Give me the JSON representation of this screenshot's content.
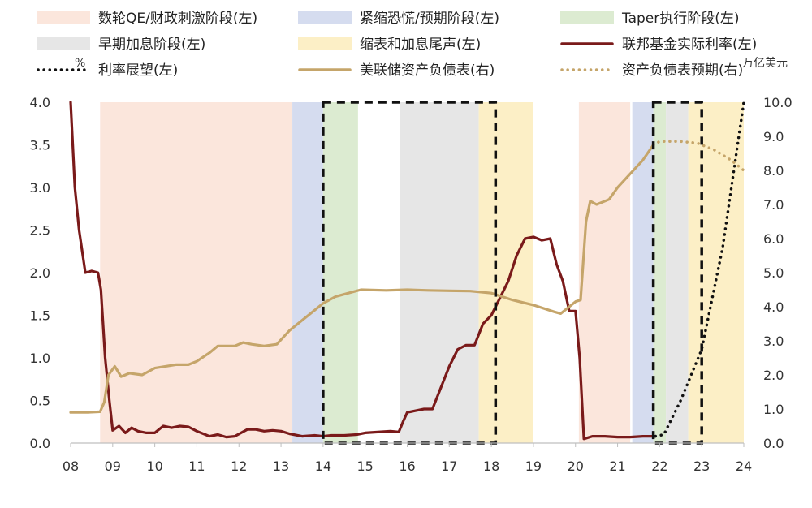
{
  "chart_data": {
    "type": "line",
    "title": "",
    "left_unit": "%",
    "right_unit": "万亿美元",
    "x_ticks": [
      "08",
      "09",
      "10",
      "11",
      "12",
      "13",
      "14",
      "15",
      "16",
      "17",
      "18",
      "19",
      "20",
      "21",
      "22",
      "23",
      "24"
    ],
    "xlim": [
      2008,
      2024
    ],
    "ylim_left": [
      0,
      4
    ],
    "ylim_right": [
      0,
      10
    ],
    "y_ticks_left": [
      "0.0",
      "0.5",
      "1.0",
      "1.5",
      "2.0",
      "2.5",
      "3.0",
      "3.5",
      "4.0"
    ],
    "y_ticks_right": [
      "0.0",
      "1.0",
      "2.0",
      "3.0",
      "4.0",
      "5.0",
      "6.0",
      "7.0",
      "8.0",
      "9.0",
      "10.0"
    ],
    "legend": [
      {
        "label": "数轮QE/财政刺激阶段(左)",
        "kind": "box",
        "color": "#fbe6dc"
      },
      {
        "label": "紧缩恐慌/预期阶段(左)",
        "kind": "box",
        "color": "#d5dcef"
      },
      {
        "label": "Taper执行阶段(左)",
        "kind": "box",
        "color": "#dcebd1"
      },
      {
        "label": "早期加息阶段(左)",
        "kind": "box",
        "color": "#e6e6e6"
      },
      {
        "label": "缩表和加息尾声(左)",
        "kind": "box",
        "color": "#fcefc6"
      },
      {
        "label": "联邦基金实际利率(左)",
        "kind": "line",
        "color": "#7a1a1a"
      },
      {
        "label": "利率展望(左)",
        "kind": "dotted",
        "color": "#111111"
      },
      {
        "label": "美联储资产负债表(右)",
        "kind": "line",
        "color": "#c5a56a"
      },
      {
        "label": "资产负债表预期(右)",
        "kind": "dotted",
        "color": "#c5a56a"
      }
    ],
    "phases": [
      {
        "name": "数轮QE/财政刺激阶段",
        "start": 2008.7,
        "end": 2013.27,
        "color": "#fbe6dc"
      },
      {
        "name": "紧缩恐慌/预期阶段",
        "start": 2013.27,
        "end": 2014.0,
        "color": "#d5dcef"
      },
      {
        "name": "Taper执行阶段",
        "start": 2014.0,
        "end": 2014.83,
        "color": "#dcebd1"
      },
      {
        "name": "早期加息阶段",
        "start": 2015.83,
        "end": 2017.7,
        "color": "#e6e6e6"
      },
      {
        "name": "缩表和加息尾声",
        "start": 2017.7,
        "end": 2019.0,
        "color": "#fcefc6"
      },
      {
        "name": "数轮QE/财政刺激阶段",
        "start": 2020.08,
        "end": 2021.3,
        "color": "#fbe6dc"
      },
      {
        "name": "紧缩恐慌/预期阶段",
        "start": 2021.35,
        "end": 2021.85,
        "color": "#d5dcef"
      },
      {
        "name": "Taper执行阶段",
        "start": 2021.85,
        "end": 2022.15,
        "color": "#dcebd1"
      },
      {
        "name": "早期加息阶段",
        "start": 2022.15,
        "end": 2022.68,
        "color": "#e6e6e6"
      },
      {
        "name": "缩表和加息尾声",
        "start": 2022.68,
        "end": 2024.0,
        "color": "#fcefc6"
      }
    ],
    "highlight_boxes": [
      {
        "start": 2014.0,
        "end": 2018.1
      },
      {
        "start": 2021.85,
        "end": 2023.0
      }
    ],
    "series": [
      {
        "name": "联邦基金实际利率(左)",
        "axis": "left",
        "style": "solid",
        "color": "#7a1a1a",
        "points": [
          [
            2008.0,
            4.0
          ],
          [
            2008.1,
            3.0
          ],
          [
            2008.2,
            2.5
          ],
          [
            2008.35,
            2.0
          ],
          [
            2008.5,
            2.02
          ],
          [
            2008.65,
            2.0
          ],
          [
            2008.72,
            1.8
          ],
          [
            2008.82,
            1.0
          ],
          [
            2008.92,
            0.5
          ],
          [
            2009.0,
            0.15
          ],
          [
            2009.15,
            0.2
          ],
          [
            2009.3,
            0.12
          ],
          [
            2009.45,
            0.18
          ],
          [
            2009.6,
            0.14
          ],
          [
            2009.8,
            0.12
          ],
          [
            2010.0,
            0.12
          ],
          [
            2010.2,
            0.2
          ],
          [
            2010.4,
            0.18
          ],
          [
            2010.6,
            0.2
          ],
          [
            2010.8,
            0.19
          ],
          [
            2011.0,
            0.14
          ],
          [
            2011.3,
            0.08
          ],
          [
            2011.5,
            0.1
          ],
          [
            2011.7,
            0.07
          ],
          [
            2011.9,
            0.08
          ],
          [
            2012.2,
            0.16
          ],
          [
            2012.4,
            0.16
          ],
          [
            2012.6,
            0.14
          ],
          [
            2012.8,
            0.15
          ],
          [
            2013.0,
            0.14
          ],
          [
            2013.2,
            0.11
          ],
          [
            2013.5,
            0.08
          ],
          [
            2013.8,
            0.09
          ],
          [
            2014.0,
            0.08
          ],
          [
            2014.2,
            0.09
          ],
          [
            2014.5,
            0.09
          ],
          [
            2014.8,
            0.1
          ],
          [
            2015.0,
            0.12
          ],
          [
            2015.3,
            0.13
          ],
          [
            2015.6,
            0.14
          ],
          [
            2015.8,
            0.13
          ],
          [
            2015.9,
            0.25
          ],
          [
            2016.0,
            0.36
          ],
          [
            2016.2,
            0.38
          ],
          [
            2016.4,
            0.4
          ],
          [
            2016.6,
            0.4
          ],
          [
            2016.8,
            0.65
          ],
          [
            2017.0,
            0.9
          ],
          [
            2017.2,
            1.1
          ],
          [
            2017.4,
            1.15
          ],
          [
            2017.6,
            1.15
          ],
          [
            2017.8,
            1.4
          ],
          [
            2018.0,
            1.5
          ],
          [
            2018.2,
            1.7
          ],
          [
            2018.4,
            1.9
          ],
          [
            2018.6,
            2.2
          ],
          [
            2018.8,
            2.4
          ],
          [
            2019.0,
            2.42
          ],
          [
            2019.2,
            2.38
          ],
          [
            2019.4,
            2.4
          ],
          [
            2019.55,
            2.1
          ],
          [
            2019.7,
            1.9
          ],
          [
            2019.85,
            1.55
          ],
          [
            2020.0,
            1.55
          ],
          [
            2020.1,
            1.0
          ],
          [
            2020.2,
            0.05
          ],
          [
            2020.4,
            0.08
          ],
          [
            2020.7,
            0.08
          ],
          [
            2021.0,
            0.07
          ],
          [
            2021.3,
            0.07
          ],
          [
            2021.6,
            0.08
          ],
          [
            2021.9,
            0.08
          ]
        ]
      },
      {
        "name": "利率展望(左)",
        "axis": "left",
        "style": "dotted",
        "color": "#111111",
        "points": [
          [
            2021.9,
            0.08
          ],
          [
            2022.1,
            0.1
          ],
          [
            2022.5,
            0.5
          ],
          [
            2023.0,
            1.1
          ],
          [
            2023.5,
            2.3
          ],
          [
            2024.0,
            4.0
          ]
        ]
      },
      {
        "name": "美联储资产负债表(右)",
        "axis": "right",
        "style": "solid",
        "color": "#c5a56a",
        "points": [
          [
            2008.0,
            0.9
          ],
          [
            2008.4,
            0.9
          ],
          [
            2008.7,
            0.92
          ],
          [
            2008.8,
            1.2
          ],
          [
            2008.9,
            2.0
          ],
          [
            2009.05,
            2.25
          ],
          [
            2009.2,
            1.95
          ],
          [
            2009.4,
            2.05
          ],
          [
            2009.7,
            2.0
          ],
          [
            2010.0,
            2.2
          ],
          [
            2010.5,
            2.3
          ],
          [
            2010.8,
            2.3
          ],
          [
            2011.0,
            2.4
          ],
          [
            2011.3,
            2.65
          ],
          [
            2011.5,
            2.85
          ],
          [
            2011.9,
            2.85
          ],
          [
            2012.1,
            2.95
          ],
          [
            2012.3,
            2.9
          ],
          [
            2012.6,
            2.85
          ],
          [
            2012.9,
            2.9
          ],
          [
            2013.2,
            3.3
          ],
          [
            2013.5,
            3.6
          ],
          [
            2013.8,
            3.9
          ],
          [
            2014.0,
            4.1
          ],
          [
            2014.3,
            4.3
          ],
          [
            2014.6,
            4.4
          ],
          [
            2014.9,
            4.5
          ],
          [
            2015.5,
            4.48
          ],
          [
            2016.0,
            4.5
          ],
          [
            2016.5,
            4.48
          ],
          [
            2017.0,
            4.47
          ],
          [
            2017.5,
            4.46
          ],
          [
            2018.0,
            4.4
          ],
          [
            2018.5,
            4.2
          ],
          [
            2019.0,
            4.05
          ],
          [
            2019.5,
            3.85
          ],
          [
            2019.65,
            3.8
          ],
          [
            2019.85,
            4.0
          ],
          [
            2020.0,
            4.15
          ],
          [
            2020.12,
            4.2
          ],
          [
            2020.25,
            6.5
          ],
          [
            2020.35,
            7.1
          ],
          [
            2020.5,
            7.0
          ],
          [
            2020.8,
            7.15
          ],
          [
            2021.0,
            7.5
          ],
          [
            2021.3,
            7.9
          ],
          [
            2021.6,
            8.3
          ],
          [
            2021.85,
            8.75
          ]
        ]
      },
      {
        "name": "资产负债表预期(右)",
        "axis": "right",
        "style": "dotted",
        "color": "#c5a56a",
        "points": [
          [
            2021.85,
            8.75
          ],
          [
            2022.0,
            8.85
          ],
          [
            2022.5,
            8.85
          ],
          [
            2022.9,
            8.8
          ],
          [
            2023.3,
            8.6
          ],
          [
            2023.7,
            8.3
          ],
          [
            2024.0,
            8.0
          ]
        ]
      }
    ]
  }
}
